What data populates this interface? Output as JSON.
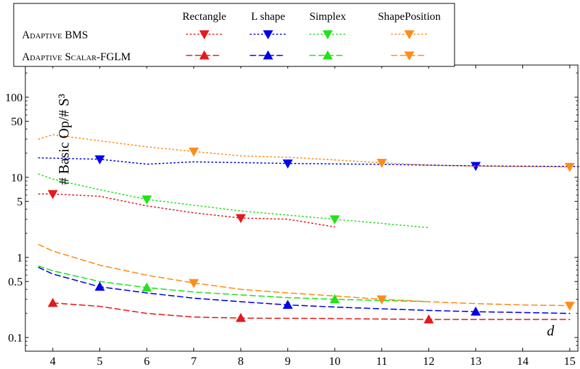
{
  "chart_data": {
    "type": "line",
    "xlabel": "d",
    "ylabel": "# Basic Op/# S³",
    "xscale": "linear",
    "yscale": "log",
    "xlim": [
      3.7,
      15.2
    ],
    "ylim": [
      0.07,
      300
    ],
    "x_ticks": [
      "4",
      "5",
      "6",
      "7",
      "8",
      "9",
      "10",
      "11",
      "12",
      "13",
      "14",
      "15"
    ],
    "y_ticks": [
      {
        "v": 0.1,
        "label": "0.1"
      },
      {
        "v": 0.5,
        "label": "0.5"
      },
      {
        "v": 1,
        "label": "1"
      },
      {
        "v": 5,
        "label": "5"
      },
      {
        "v": 10,
        "label": "10"
      },
      {
        "v": 50,
        "label": "50"
      },
      {
        "v": 100,
        "label": "100"
      }
    ],
    "legend": {
      "placement": "top-left",
      "columns": [
        "Rectangle",
        "L shape",
        "Simplex",
        "ShapePosition"
      ],
      "rows": [
        "Adaptive BMS",
        "Adaptive Scalar-FGLM"
      ]
    },
    "series": [
      {
        "name": "Rectangle",
        "group": "Adaptive BMS",
        "color": "#e41a1c",
        "dash": "dotted",
        "marker": "down",
        "x": [
          3.7,
          4,
          5,
          6,
          7,
          8,
          9,
          10
        ],
        "y": [
          6.2,
          6.2,
          5.8,
          4.4,
          3.6,
          3.1,
          3.0,
          2.4
        ],
        "markers": [
          4,
          8
        ]
      },
      {
        "name": "L shape",
        "group": "Adaptive BMS",
        "color": "#0000ee",
        "dash": "dotted",
        "marker": "down",
        "x": [
          3.7,
          5,
          6,
          7,
          9,
          11,
          13,
          15.2
        ],
        "y": [
          17.5,
          16.8,
          14.6,
          15.6,
          14.9,
          14.5,
          13.9,
          13.6
        ],
        "markers": [
          5,
          9,
          13
        ]
      },
      {
        "name": "Simplex",
        "group": "Adaptive BMS",
        "color": "#22e31a",
        "dash": "dotted",
        "marker": "down",
        "x": [
          3.7,
          4,
          5,
          6,
          8,
          10,
          12
        ],
        "y": [
          11.0,
          9.5,
          7.0,
          5.3,
          3.8,
          3.0,
          2.35
        ],
        "markers": [
          6,
          10
        ]
      },
      {
        "name": "ShapePosition",
        "group": "Adaptive BMS",
        "color": "#ff8c1a",
        "dash": "dotted",
        "marker": "down",
        "x": [
          3.7,
          4,
          6,
          7,
          8,
          9,
          10,
          11,
          12,
          13,
          15
        ],
        "y": [
          30,
          34,
          24,
          21,
          18.5,
          17.8,
          16.5,
          15.2,
          14.2,
          13.8,
          13.5
        ],
        "markers": [
          7,
          11,
          15
        ]
      },
      {
        "name": "Rectangle",
        "group": "Adaptive Scalar-FGLM",
        "color": "#e41a1c",
        "dash": "dashed",
        "marker": "up",
        "x": [
          4,
          5,
          6,
          7,
          8,
          10,
          12,
          13,
          15
        ],
        "y": [
          0.27,
          0.245,
          0.2,
          0.18,
          0.175,
          0.172,
          0.168,
          0.168,
          0.168
        ],
        "markers": [
          4,
          8,
          12
        ]
      },
      {
        "name": "L shape",
        "group": "Adaptive Scalar-FGLM",
        "color": "#0000ee",
        "dash": "dashed",
        "marker": "up",
        "x": [
          3.7,
          4,
          5,
          6,
          7,
          8,
          9,
          10,
          11,
          12,
          13,
          14,
          15
        ],
        "y": [
          0.75,
          0.62,
          0.43,
          0.36,
          0.31,
          0.28,
          0.255,
          0.24,
          0.228,
          0.218,
          0.21,
          0.205,
          0.2
        ],
        "markers": [
          5,
          9,
          13
        ]
      },
      {
        "name": "Simplex",
        "group": "Adaptive Scalar-FGLM",
        "color": "#22e31a",
        "dash": "dashed",
        "marker": "up",
        "x": [
          3.7,
          4,
          5,
          6,
          7,
          8,
          9,
          10,
          11,
          12
        ],
        "y": [
          0.78,
          0.68,
          0.5,
          0.42,
          0.37,
          0.34,
          0.315,
          0.3,
          0.29,
          0.28
        ],
        "markers": [
          6,
          10
        ]
      },
      {
        "name": "ShapePosition",
        "group": "Adaptive Scalar-FGLM",
        "color": "#ff8c1a",
        "dash": "dashed",
        "marker": "down",
        "x": [
          3.7,
          4,
          5,
          6,
          7,
          8,
          9,
          10,
          11,
          12,
          13,
          14,
          15
        ],
        "y": [
          1.45,
          1.2,
          0.8,
          0.6,
          0.48,
          0.4,
          0.36,
          0.33,
          0.3,
          0.28,
          0.265,
          0.255,
          0.25
        ],
        "markers": [
          7,
          11,
          15
        ]
      }
    ]
  }
}
